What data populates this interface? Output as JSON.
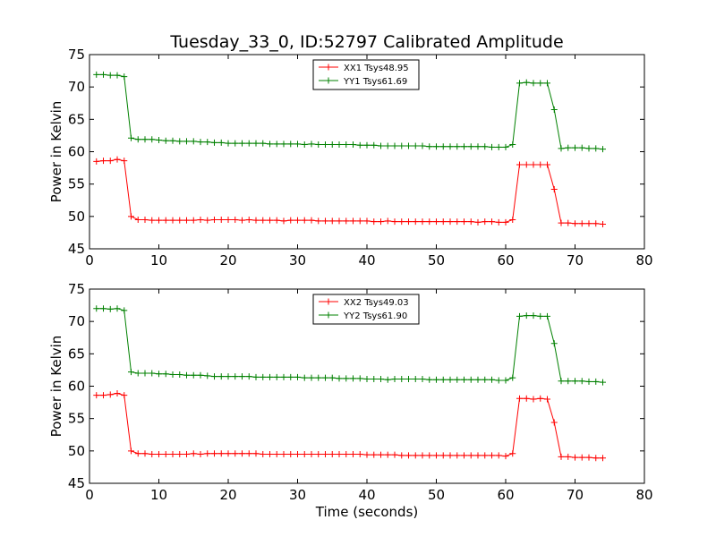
{
  "figure": {
    "title": "Tuesday_33_0, ID:52797 Calibrated Amplitude"
  },
  "chart_data": [
    {
      "type": "line",
      "title": "Tuesday_33_0, ID:52797 Calibrated Amplitude",
      "xlabel": "",
      "ylabel": "Power in Kelvin",
      "xlim": [
        0,
        80
      ],
      "ylim": [
        45,
        75
      ],
      "xticks": [
        "0",
        "10",
        "20",
        "30",
        "40",
        "50",
        "60",
        "70",
        "80"
      ],
      "yticks": [
        "45",
        "50",
        "55",
        "60",
        "65",
        "70",
        "75"
      ],
      "grid": false,
      "legend_position": "top-center",
      "series": [
        {
          "name": "XX1 Tsys48.95",
          "color": "#ff0000",
          "marker": "plus",
          "x": [
            1,
            2,
            3,
            4,
            5,
            6,
            7,
            8,
            9,
            10,
            11,
            12,
            13,
            14,
            15,
            16,
            17,
            18,
            19,
            20,
            21,
            22,
            23,
            24,
            25,
            26,
            27,
            28,
            29,
            30,
            31,
            32,
            33,
            34,
            35,
            36,
            37,
            38,
            39,
            40,
            41,
            42,
            43,
            44,
            45,
            46,
            47,
            48,
            49,
            50,
            51,
            52,
            53,
            54,
            55,
            56,
            57,
            58,
            59,
            60,
            61,
            62,
            63,
            64,
            65,
            66,
            67,
            68,
            69,
            70,
            71,
            72,
            73,
            74
          ],
          "y": [
            58.5,
            58.6,
            58.6,
            58.8,
            58.6,
            50.0,
            49.5,
            49.5,
            49.4,
            49.4,
            49.4,
            49.4,
            49.4,
            49.4,
            49.4,
            49.5,
            49.4,
            49.5,
            49.5,
            49.5,
            49.5,
            49.4,
            49.5,
            49.4,
            49.4,
            49.4,
            49.4,
            49.3,
            49.4,
            49.4,
            49.4,
            49.4,
            49.3,
            49.3,
            49.3,
            49.3,
            49.3,
            49.3,
            49.3,
            49.3,
            49.2,
            49.2,
            49.3,
            49.2,
            49.2,
            49.2,
            49.2,
            49.2,
            49.2,
            49.2,
            49.2,
            49.2,
            49.2,
            49.2,
            49.2,
            49.1,
            49.2,
            49.2,
            49.1,
            49.1,
            49.5,
            58.0,
            58.0,
            58.0,
            58.0,
            58.0,
            54.2,
            49.0,
            49.0,
            48.9,
            48.9,
            48.9,
            48.9,
            48.8
          ]
        },
        {
          "name": "YY1 Tsys61.69",
          "color": "#008000",
          "marker": "plus",
          "x": [
            1,
            2,
            3,
            4,
            5,
            6,
            7,
            8,
            9,
            10,
            11,
            12,
            13,
            14,
            15,
            16,
            17,
            18,
            19,
            20,
            21,
            22,
            23,
            24,
            25,
            26,
            27,
            28,
            29,
            30,
            31,
            32,
            33,
            34,
            35,
            36,
            37,
            38,
            39,
            40,
            41,
            42,
            43,
            44,
            45,
            46,
            47,
            48,
            49,
            50,
            51,
            52,
            53,
            54,
            55,
            56,
            57,
            58,
            59,
            60,
            61,
            62,
            63,
            64,
            65,
            66,
            67,
            68,
            69,
            70,
            71,
            72,
            73,
            74
          ],
          "y": [
            71.9,
            71.9,
            71.8,
            71.8,
            71.6,
            62.1,
            61.9,
            61.9,
            61.9,
            61.8,
            61.7,
            61.7,
            61.6,
            61.6,
            61.6,
            61.5,
            61.5,
            61.4,
            61.4,
            61.3,
            61.3,
            61.3,
            61.3,
            61.3,
            61.3,
            61.2,
            61.2,
            61.2,
            61.2,
            61.2,
            61.1,
            61.2,
            61.1,
            61.1,
            61.1,
            61.1,
            61.1,
            61.1,
            61.0,
            61.0,
            61.0,
            60.9,
            60.9,
            60.9,
            60.9,
            60.9,
            60.9,
            60.9,
            60.8,
            60.8,
            60.8,
            60.8,
            60.8,
            60.8,
            60.8,
            60.8,
            60.8,
            60.7,
            60.7,
            60.7,
            61.1,
            70.6,
            70.7,
            70.6,
            70.6,
            70.6,
            66.5,
            60.5,
            60.6,
            60.6,
            60.6,
            60.5,
            60.5,
            60.4
          ]
        }
      ]
    },
    {
      "type": "line",
      "title": "",
      "xlabel": "Time (seconds)",
      "ylabel": "Power in Kelvin",
      "xlim": [
        0,
        80
      ],
      "ylim": [
        45,
        75
      ],
      "xticks": [
        "0",
        "10",
        "20",
        "30",
        "40",
        "50",
        "60",
        "70",
        "80"
      ],
      "yticks": [
        "45",
        "50",
        "55",
        "60",
        "65",
        "70",
        "75"
      ],
      "grid": false,
      "legend_position": "top-center",
      "series": [
        {
          "name": "XX2 Tsys49.03",
          "color": "#ff0000",
          "marker": "plus",
          "x": [
            1,
            2,
            3,
            4,
            5,
            6,
            7,
            8,
            9,
            10,
            11,
            12,
            13,
            14,
            15,
            16,
            17,
            18,
            19,
            20,
            21,
            22,
            23,
            24,
            25,
            26,
            27,
            28,
            29,
            30,
            31,
            32,
            33,
            34,
            35,
            36,
            37,
            38,
            39,
            40,
            41,
            42,
            43,
            44,
            45,
            46,
            47,
            48,
            49,
            50,
            51,
            52,
            53,
            54,
            55,
            56,
            57,
            58,
            59,
            60,
            61,
            62,
            63,
            64,
            65,
            66,
            67,
            68,
            69,
            70,
            71,
            72,
            73,
            74
          ],
          "y": [
            58.6,
            58.6,
            58.7,
            58.9,
            58.6,
            50.0,
            49.6,
            49.6,
            49.5,
            49.5,
            49.5,
            49.5,
            49.5,
            49.5,
            49.6,
            49.5,
            49.6,
            49.6,
            49.6,
            49.6,
            49.6,
            49.6,
            49.6,
            49.6,
            49.5,
            49.5,
            49.5,
            49.5,
            49.5,
            49.5,
            49.5,
            49.5,
            49.5,
            49.5,
            49.5,
            49.5,
            49.5,
            49.5,
            49.5,
            49.4,
            49.4,
            49.4,
            49.4,
            49.4,
            49.3,
            49.3,
            49.3,
            49.3,
            49.3,
            49.3,
            49.3,
            49.3,
            49.3,
            49.3,
            49.3,
            49.3,
            49.3,
            49.3,
            49.3,
            49.2,
            49.6,
            58.1,
            58.1,
            58.0,
            58.1,
            58.0,
            54.4,
            49.1,
            49.1,
            49.0,
            49.0,
            49.0,
            48.9,
            48.9
          ]
        },
        {
          "name": "YY2 Tsys61.90",
          "color": "#008000",
          "marker": "plus",
          "x": [
            1,
            2,
            3,
            4,
            5,
            6,
            7,
            8,
            9,
            10,
            11,
            12,
            13,
            14,
            15,
            16,
            17,
            18,
            19,
            20,
            21,
            22,
            23,
            24,
            25,
            26,
            27,
            28,
            29,
            30,
            31,
            32,
            33,
            34,
            35,
            36,
            37,
            38,
            39,
            40,
            41,
            42,
            43,
            44,
            45,
            46,
            47,
            48,
            49,
            50,
            51,
            52,
            53,
            54,
            55,
            56,
            57,
            58,
            59,
            60,
            61,
            62,
            63,
            64,
            65,
            66,
            67,
            68,
            69,
            70,
            71,
            72,
            73,
            74
          ],
          "y": [
            72.0,
            72.0,
            71.9,
            72.0,
            71.7,
            62.2,
            62.0,
            62.0,
            62.0,
            61.9,
            61.9,
            61.8,
            61.8,
            61.7,
            61.7,
            61.7,
            61.6,
            61.5,
            61.5,
            61.5,
            61.5,
            61.5,
            61.5,
            61.4,
            61.4,
            61.4,
            61.4,
            61.4,
            61.4,
            61.4,
            61.3,
            61.3,
            61.3,
            61.3,
            61.3,
            61.2,
            61.2,
            61.2,
            61.2,
            61.1,
            61.1,
            61.1,
            61.0,
            61.1,
            61.1,
            61.1,
            61.1,
            61.1,
            61.0,
            61.0,
            61.0,
            61.0,
            61.0,
            61.0,
            61.0,
            61.0,
            61.0,
            61.0,
            60.9,
            60.9,
            61.3,
            70.8,
            70.9,
            70.9,
            70.8,
            70.8,
            66.6,
            60.8,
            60.8,
            60.8,
            60.8,
            60.7,
            60.7,
            60.6
          ]
        }
      ]
    }
  ]
}
